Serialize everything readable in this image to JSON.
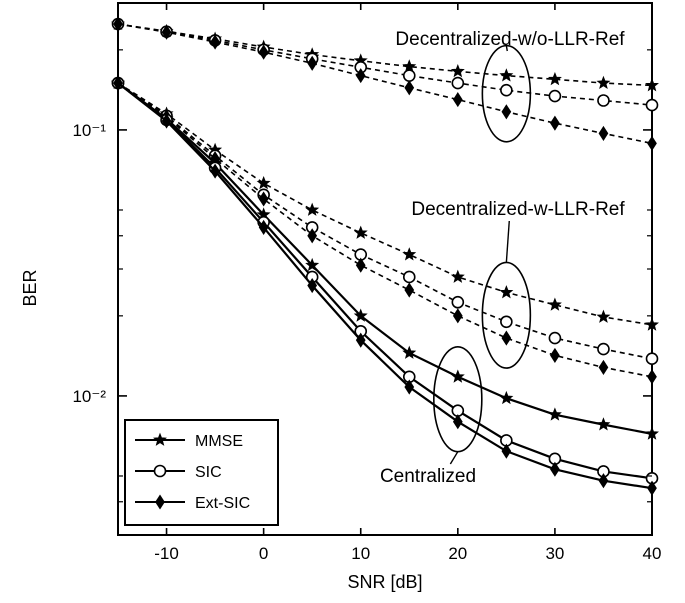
{
  "chart_data": {
    "type": "line",
    "title": "",
    "xlabel": "SNR [dB]",
    "ylabel": "BER",
    "xlim": [
      -15,
      40
    ],
    "ylim": [
      0.003,
      0.3
    ],
    "yscale": "log",
    "xticks": [
      -10,
      0,
      10,
      20,
      30,
      40
    ],
    "xtick_labels": [
      "-10",
      "0",
      "10",
      "20",
      "30",
      "40"
    ],
    "yticks": [
      0.1,
      0.01
    ],
    "ytick_labels": [
      "10⁻¹",
      "10⁻²"
    ],
    "grid": false,
    "legend": {
      "position": "bottom-left",
      "entries": [
        {
          "label": "MMSE",
          "marker": "star"
        },
        {
          "label": "SIC",
          "marker": "circle"
        },
        {
          "label": "Ext-SIC",
          "marker": "diamond"
        }
      ]
    },
    "x": [
      -15,
      -10,
      -5,
      0,
      5,
      10,
      15,
      20,
      25,
      30,
      35,
      40
    ],
    "series": [
      {
        "group": "Decentralized-w/o-LLR-Ref",
        "detector": "MMSE",
        "marker": "star",
        "line": "dashed",
        "values": [
          0.25,
          0.235,
          0.22,
          0.205,
          0.192,
          0.182,
          0.173,
          0.166,
          0.16,
          0.155,
          0.15,
          0.147
        ]
      },
      {
        "group": "Decentralized-w/o-LLR-Ref",
        "detector": "SIC",
        "marker": "circle",
        "line": "dashed",
        "values": [
          0.25,
          0.234,
          0.217,
          0.2,
          0.185,
          0.172,
          0.16,
          0.15,
          0.141,
          0.134,
          0.129,
          0.124
        ]
      },
      {
        "group": "Decentralized-w/o-LLR-Ref",
        "detector": "Ext-SIC",
        "marker": "diamond",
        "line": "dashed",
        "values": [
          0.25,
          0.233,
          0.214,
          0.196,
          0.178,
          0.16,
          0.144,
          0.13,
          0.117,
          0.106,
          0.097,
          0.089
        ]
      },
      {
        "group": "Decentralized-w-LLR-Ref",
        "detector": "MMSE",
        "marker": "star",
        "line": "dashed",
        "values": [
          0.15,
          0.115,
          0.084,
          0.063,
          0.05,
          0.041,
          0.034,
          0.028,
          0.0245,
          0.022,
          0.0198,
          0.0185
        ]
      },
      {
        "group": "Decentralized-w-LLR-Ref",
        "detector": "SIC",
        "marker": "circle",
        "line": "dashed",
        "values": [
          0.15,
          0.113,
          0.08,
          0.057,
          0.043,
          0.034,
          0.028,
          0.0225,
          0.019,
          0.0165,
          0.015,
          0.0138
        ]
      },
      {
        "group": "Decentralized-w-LLR-Ref",
        "detector": "Ext-SIC",
        "marker": "diamond",
        "line": "dashed",
        "values": [
          0.15,
          0.112,
          0.078,
          0.055,
          0.04,
          0.031,
          0.025,
          0.02,
          0.0165,
          0.0142,
          0.0128,
          0.0118
        ]
      },
      {
        "group": "Centralized",
        "detector": "MMSE",
        "marker": "star",
        "line": "solid",
        "values": [
          0.15,
          0.11,
          0.075,
          0.048,
          0.031,
          0.02,
          0.0145,
          0.0118,
          0.0098,
          0.0085,
          0.0078,
          0.0072
        ]
      },
      {
        "group": "Centralized",
        "detector": "SIC",
        "marker": "circle",
        "line": "solid",
        "values": [
          0.15,
          0.109,
          0.072,
          0.045,
          0.028,
          0.0175,
          0.0118,
          0.0088,
          0.0068,
          0.0058,
          0.0052,
          0.0049
        ]
      },
      {
        "group": "Centralized",
        "detector": "Ext-SIC",
        "marker": "diamond",
        "line": "solid",
        "values": [
          0.15,
          0.108,
          0.07,
          0.043,
          0.026,
          0.0162,
          0.0108,
          0.008,
          0.0062,
          0.0053,
          0.0048,
          0.0045
        ]
      }
    ],
    "annotations": [
      {
        "text": "Decentralized-w/o-LLR-Ref",
        "group": "Decentralized-w/o-LLR-Ref",
        "ellipse_at_x": 25
      },
      {
        "text": "Decentralized-w-LLR-Ref",
        "group": "Decentralized-w-LLR-Ref",
        "ellipse_at_x": 25
      },
      {
        "text": "Centralized",
        "group": "Centralized",
        "ellipse_at_x": 20
      }
    ]
  }
}
